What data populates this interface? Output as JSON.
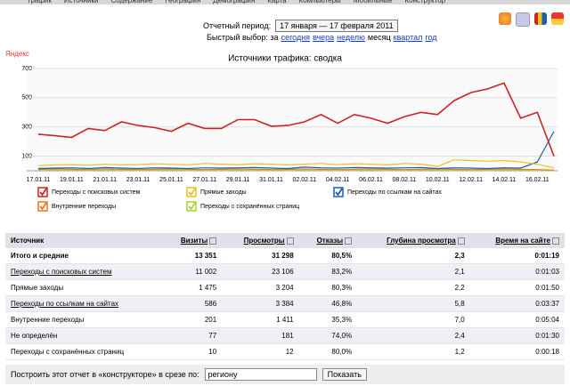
{
  "nav": {
    "tabs": [
      "Трафик",
      "Источники",
      "Содержание",
      "География",
      "Демография",
      "Карта",
      "Компьютеры",
      "Мобильные",
      "Конструктор"
    ]
  },
  "header": {
    "period_label": "Отчетный период:",
    "period_value": "17 января — 17 февраля 2011",
    "quick_label": "Быстрый выбор: за",
    "quick_items": [
      "сегодня",
      "вчера",
      "неделю",
      "месяц",
      "квартал",
      "год"
    ]
  },
  "chart_data": {
    "type": "line",
    "watermark": "Яндекс",
    "title": "Источники трафика: сводка",
    "categories": [
      "17.01.11",
      null,
      "19.01.11",
      null,
      "21.01.11",
      null,
      "23.01.11",
      null,
      "25.01.11",
      null,
      "27.01.11",
      null,
      "29.01.11",
      null,
      "31.01.11",
      null,
      "02.02.11",
      null,
      "04.02.11",
      null,
      "06.02.11",
      null,
      "08.02.11",
      null,
      "10.02.11",
      null,
      "12.02.11",
      null,
      "14.02.11",
      null,
      "16.02.11",
      null
    ],
    "ylim": [
      0,
      700
    ],
    "yticks": [
      100,
      300,
      500,
      700
    ],
    "grid": true,
    "series": [
      {
        "name": "Переходы с поисковых систем",
        "color": "#cc2222",
        "values": [
          250,
          240,
          228,
          290,
          275,
          335,
          310,
          295,
          270,
          325,
          290,
          290,
          350,
          350,
          305,
          310,
          335,
          385,
          325,
          385,
          360,
          325,
          370,
          400,
          385,
          480,
          535,
          560,
          600,
          360,
          400,
          100
        ]
      },
      {
        "name": "Прямые заходы",
        "color": "#f0c020",
        "values": [
          35,
          40,
          42,
          38,
          45,
          40,
          42,
          48,
          44,
          40,
          50,
          45,
          42,
          48,
          45,
          40,
          45,
          50,
          42,
          48,
          45,
          40,
          50,
          45,
          30,
          75,
          70,
          65,
          70,
          60,
          45,
          20
        ]
      },
      {
        "name": "Переходы по ссылкам на сайтах",
        "color": "#1a5fb4",
        "values": [
          15,
          18,
          20,
          15,
          22,
          18,
          15,
          20,
          18,
          15,
          20,
          18,
          20,
          22,
          18,
          15,
          25,
          20,
          18,
          22,
          20,
          18,
          20,
          22,
          15,
          20,
          18,
          15,
          20,
          18,
          60,
          270
        ]
      },
      {
        "name": "Внутренние переходы",
        "color": "#e8762c",
        "values": [
          10,
          12,
          10,
          8,
          12,
          10,
          8,
          10,
          12,
          10,
          8,
          10,
          12,
          10,
          8,
          10,
          12,
          10,
          8,
          10,
          12,
          10,
          8,
          10,
          12,
          10,
          8,
          10,
          12,
          10,
          8,
          5
        ]
      },
      {
        "name": "Переходы с сохранённых страниц",
        "color": "#a8d43a",
        "values": [
          3,
          4,
          3,
          2,
          4,
          3,
          2,
          3,
          4,
          3,
          2,
          3,
          4,
          3,
          2,
          3,
          4,
          3,
          2,
          3,
          4,
          3,
          2,
          3,
          4,
          3,
          2,
          3,
          4,
          3,
          2,
          1
        ]
      }
    ]
  },
  "table": {
    "header": [
      "Источник",
      "Визиты",
      "Просмотры",
      "Отказы",
      "Глубина просмотра",
      "Время на сайте"
    ],
    "rows": [
      [
        "Итого и средние",
        "13 351",
        "31 298",
        "80,5%",
        "2,3",
        "0:01:19"
      ],
      [
        "Переходы с поисковых систем",
        "11 002",
        "23 106",
        "83,2%",
        "2,1",
        "0:01:03"
      ],
      [
        "Прямые заходы",
        "1 475",
        "3 204",
        "80,3%",
        "2,2",
        "0:01:50"
      ],
      [
        "Переходы по ссылкам на сайтах",
        "586",
        "3 384",
        "46,8%",
        "5,8",
        "0:03:37"
      ],
      [
        "Внутренние переходы",
        "201",
        "1 411",
        "35,3%",
        "7,0",
        "0:05:04"
      ],
      [
        "Не определён",
        "77",
        "181",
        "74,0%",
        "2,4",
        "0:01:30"
      ],
      [
        "Переходы с сохранённых страниц",
        "10",
        "12",
        "80,0%",
        "1,2",
        "0:00:18"
      ]
    ]
  },
  "footer": {
    "label": "Построить этот отчет в «конструкторе» в срезе по:",
    "select": "региону",
    "button": "Показать"
  }
}
